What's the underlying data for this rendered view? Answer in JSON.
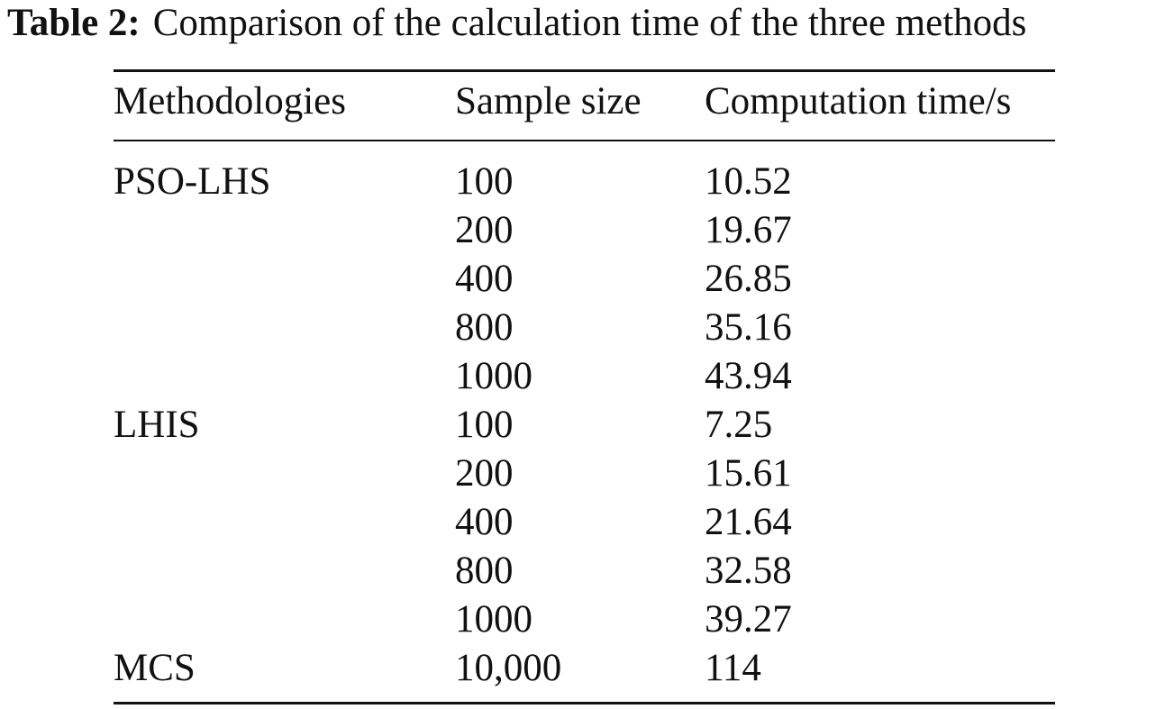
{
  "caption": {
    "label": "Table 2:",
    "text": "Comparison of the calculation time of the three methods"
  },
  "table": {
    "headers": [
      "Methodologies",
      "Sample size",
      "Computation time/s"
    ],
    "rows": [
      {
        "method": "PSO-LHS",
        "size": "100",
        "time": "10.52"
      },
      {
        "method": "",
        "size": "200",
        "time": "19.67"
      },
      {
        "method": "",
        "size": "400",
        "time": "26.85"
      },
      {
        "method": "",
        "size": "800",
        "time": "35.16"
      },
      {
        "method": "",
        "size": "1000",
        "time": "43.94"
      },
      {
        "method": "LHIS",
        "size": "100",
        "time": "7.25"
      },
      {
        "method": "",
        "size": "200",
        "time": "15.61"
      },
      {
        "method": "",
        "size": "400",
        "time": "21.64"
      },
      {
        "method": "",
        "size": "800",
        "time": "32.58"
      },
      {
        "method": "",
        "size": "1000",
        "time": "39.27"
      },
      {
        "method": "MCS",
        "size": "10,000",
        "time": "114"
      }
    ]
  }
}
